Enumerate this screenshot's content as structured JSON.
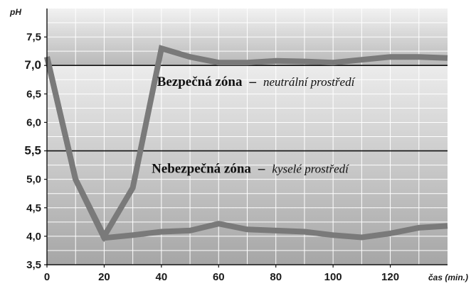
{
  "chart_data": {
    "type": "line",
    "ylabel": "pH",
    "xlabel": "čas (min.)",
    "xlim": [
      0,
      140
    ],
    "ylim": [
      3.5,
      8.0
    ],
    "xticks": [
      "0",
      "20",
      "40",
      "60",
      "80",
      "100",
      "120"
    ],
    "yticks": [
      "3,5",
      "4,0",
      "4,5",
      "5,0",
      "5,5",
      "6,0",
      "6,5",
      "7,0",
      "7,5"
    ],
    "major_yticks": [
      "5,5",
      "7,0"
    ],
    "threshold_lines": [
      7.0,
      5.5
    ],
    "grid": true,
    "zones": [
      {
        "title": "Bezpečná zóna",
        "separator": "–",
        "subtitle": "neutrální prostředí"
      },
      {
        "title": "Nebezpečná zóna",
        "separator": "–",
        "subtitle": "kyselé prostředí"
      }
    ],
    "series": [
      {
        "x": [
          0,
          10,
          20,
          30,
          40,
          50,
          60,
          70,
          80,
          90,
          100,
          110,
          120,
          130,
          140
        ],
        "values": [
          7.15,
          5.0,
          4.0,
          4.85,
          7.3,
          7.15,
          7.05,
          7.05,
          7.08,
          7.07,
          7.05,
          7.1,
          7.15,
          7.15,
          7.13
        ]
      },
      {
        "x": [
          0,
          10,
          20,
          30,
          40,
          50,
          60,
          70,
          80,
          90,
          100,
          110,
          120,
          130,
          140
        ],
        "values": [
          7.15,
          5.0,
          3.97,
          4.02,
          4.08,
          4.1,
          4.22,
          4.12,
          4.1,
          4.08,
          4.02,
          3.98,
          4.05,
          4.15,
          4.18
        ]
      }
    ],
    "colors": {
      "line": "#7a7a7a",
      "threshold": "#111111",
      "grid": "#ffffff",
      "zone_top_light": "#f2f2f2",
      "zone_top_dark": "#b8b8b8",
      "zone_bottom_light": "#ececec",
      "zone_bottom_dark": "#a6a6a6"
    }
  }
}
